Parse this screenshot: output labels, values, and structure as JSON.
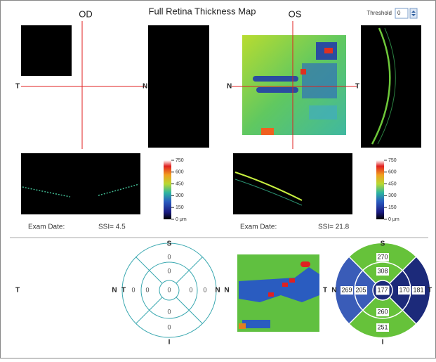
{
  "header": {
    "title": "Full Retina Thickness Map",
    "threshold_label": "Threshold",
    "threshold_value": "0"
  },
  "od": {
    "label": "OD",
    "cross_left": "T",
    "cross_right": "N",
    "scale": [
      "750",
      "600",
      "450",
      "300",
      "150",
      "0 μm"
    ],
    "exam_date": "Exam Date:",
    "ssi": "SSI= 4.5"
  },
  "os": {
    "label": "OS",
    "cross_left": "N",
    "cross_right": "T",
    "scale": [
      "750",
      "600",
      "450",
      "300",
      "150",
      "0 μm"
    ],
    "exam_date": "Exam Date:",
    "ssi": "SSI= 21.8"
  },
  "summary": {
    "far_left": "T",
    "od": {
      "top": "S",
      "bottom": "I",
      "left_outer": "N",
      "left_inner": "T",
      "right_inner": "N",
      "right_outer": "N",
      "values": {
        "outer_top": "0",
        "inner_top": "0",
        "outer_left": "0",
        "inner_left": "0",
        "center": "0",
        "inner_right": "0",
        "outer_right": "0",
        "inner_bottom": "0",
        "outer_bottom": "0"
      }
    },
    "os": {
      "top": "S",
      "bottom": "I",
      "left_outer": "T",
      "left_inner": "N",
      "right": "T",
      "values": {
        "outer_top": "270",
        "inner_top": "308",
        "outer_left": "269",
        "inner_left": "205",
        "center": "177",
        "inner_right": "170",
        "outer_right": "181",
        "inner_bottom": "260",
        "outer_bottom": "251"
      }
    }
  }
}
